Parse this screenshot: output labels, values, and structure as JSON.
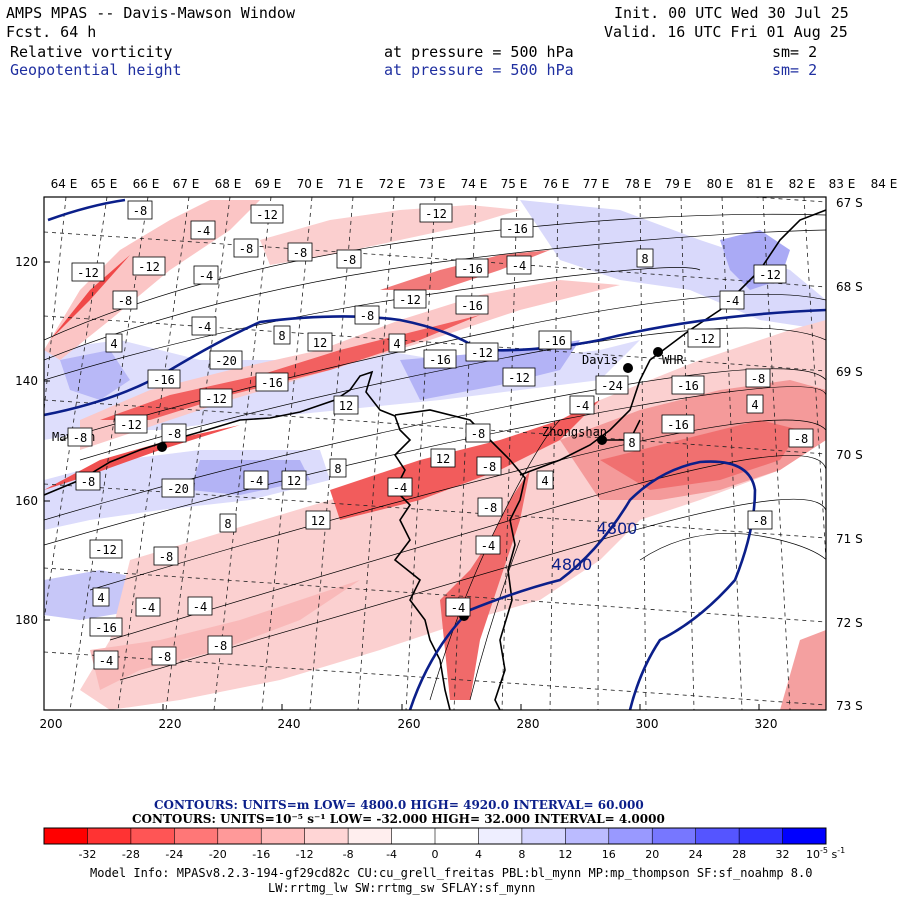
{
  "header": {
    "title": "AMPS MPAS -- Davis-Mawson Window",
    "forecast": "Fcst.   64 h",
    "init": "Init. 00 UTC Wed 30 Jul 25",
    "valid": "Valid. 16 UTC Fri 01 Aug 25",
    "fields": [
      {
        "name": "Relative vorticity",
        "pressure": "at pressure =  500 hPa",
        "sm": "sm= 2"
      },
      {
        "name": "Geopotential height",
        "pressure": "at pressure =  500 hPa",
        "sm": "sm= 2"
      }
    ]
  },
  "axes": {
    "top_lon": [
      "64 E",
      "65 E",
      "66 E",
      "67 E",
      "68 E",
      "69 E",
      "70 E",
      "71 E",
      "72 E",
      "73 E",
      "74 E",
      "75 E",
      "76 E",
      "77 E",
      "78 E",
      "79 E",
      "80 E",
      "81 E",
      "82 E",
      "83 E",
      "84 E"
    ],
    "right_lat": [
      "67 S",
      "68 S",
      "69 S",
      "70 S",
      "71 S",
      "72 S",
      "73 S"
    ],
    "left_y": [
      "120",
      "140",
      "160",
      "180"
    ],
    "bottom_x": [
      "200",
      "220",
      "240",
      "260",
      "280",
      "300",
      "320"
    ]
  },
  "stations": [
    {
      "name": "Mawson"
    },
    {
      "name": "Davis"
    },
    {
      "name": "WHR"
    },
    {
      "name": "Zhongshan"
    }
  ],
  "height_labels": [
    "4800",
    "4800"
  ],
  "vort_labels": [
    "-8",
    "-12",
    "-12",
    "-4",
    "-16",
    "-8",
    "-8",
    "-8",
    "-12",
    "-12",
    "-16",
    "-4",
    "8",
    "-4",
    "-8",
    "-12",
    "-16",
    "-8",
    "-12",
    "-4",
    "4",
    "-4",
    "8",
    "12",
    "4",
    "-16",
    "-12",
    "-12",
    "-16",
    "-16",
    "-20",
    "-16",
    "-24",
    "-16",
    "-8",
    "4",
    "-12",
    "-4",
    "-16",
    "-12",
    "8",
    "-8",
    "-8",
    "12",
    "-8",
    "-12",
    "-8",
    "8",
    "12",
    "-4",
    "12",
    "-20",
    "-8",
    "-8",
    "-4",
    "4",
    "8",
    "12",
    "-8",
    "-8",
    "-12",
    "-8",
    "-4",
    "4",
    "-4",
    "-16",
    "-4",
    "-8",
    "-4",
    "-8",
    "-4"
  ],
  "colorbar": {
    "ticks": [
      "-32",
      "-28",
      "-24",
      "-20",
      "-16",
      "-12",
      "-8",
      "-4",
      "0",
      "4",
      "8",
      "12",
      "16",
      "20",
      "24",
      "28",
      "32"
    ],
    "units": "10",
    "units_exp": "-5",
    "units_suffix": "s",
    "units_suffix_exp": "-1",
    "colors": [
      "#ff0000",
      "#ff3333",
      "#ff5555",
      "#ff7777",
      "#ff9999",
      "#ffbbbb",
      "#ffd5d5",
      "#ffeeee",
      "#ffffff",
      "#ffffff",
      "#eeeeff",
      "#d5d5ff",
      "#bbbbff",
      "#9999ff",
      "#7777ff",
      "#5555ff",
      "#3333ff",
      "#0000ff"
    ]
  },
  "contour_info": {
    "line1": "CONTOURS:  UNITS=m  LOW=  4800.0       HIGH=  4920.0       INTERVAL=   60.000",
    "line2": "CONTOURS:  UNITS=10⁻⁵ s⁻¹   LOW=  -32.000          HIGH=  32.000          INTERVAL=   4.0000"
  },
  "model_info": {
    "line1": "Model Info: MPASv8.2.3-194-gf29cd82c CU:cu_grell_freitas PBL:bl_mynn MP:mp_thompson SF:sf_noahmp 8.0",
    "line2": "LW:rrtmg_lw SW:rrtmg_sw SFLAY:sf_mynn"
  },
  "colors": {
    "height_contour": "#0b1f8a",
    "coast": "#000000",
    "red_strong": "#f04040",
    "red_light": "#fbc8c8",
    "blue_light": "#c8c8f8"
  }
}
